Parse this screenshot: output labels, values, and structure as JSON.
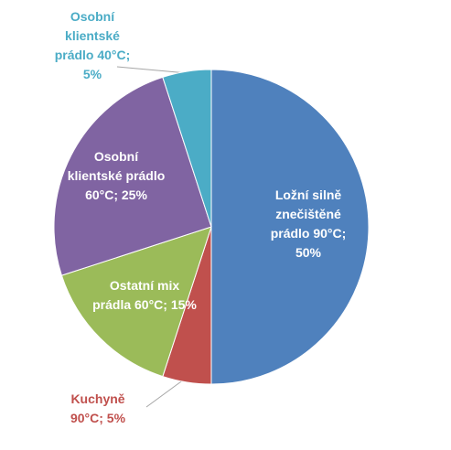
{
  "chart_data": {
    "type": "pie",
    "values": [
      50,
      5,
      15,
      25,
      5
    ],
    "value_labels": [
      "Ložní silně znečištěné prádlo 90°C; 50%",
      "Kuchyně 90°C; 5%",
      "Ostatní mix prádla 60°C; 15%",
      "Osobní klientské prádlo 60°C; 25%",
      "Osobní klientské prádlo 40°C; 5%"
    ],
    "colors": [
      "#4f81bd",
      "#c0504d",
      "#9bbb59",
      "#8064a2",
      "#4bacc6"
    ]
  }
}
